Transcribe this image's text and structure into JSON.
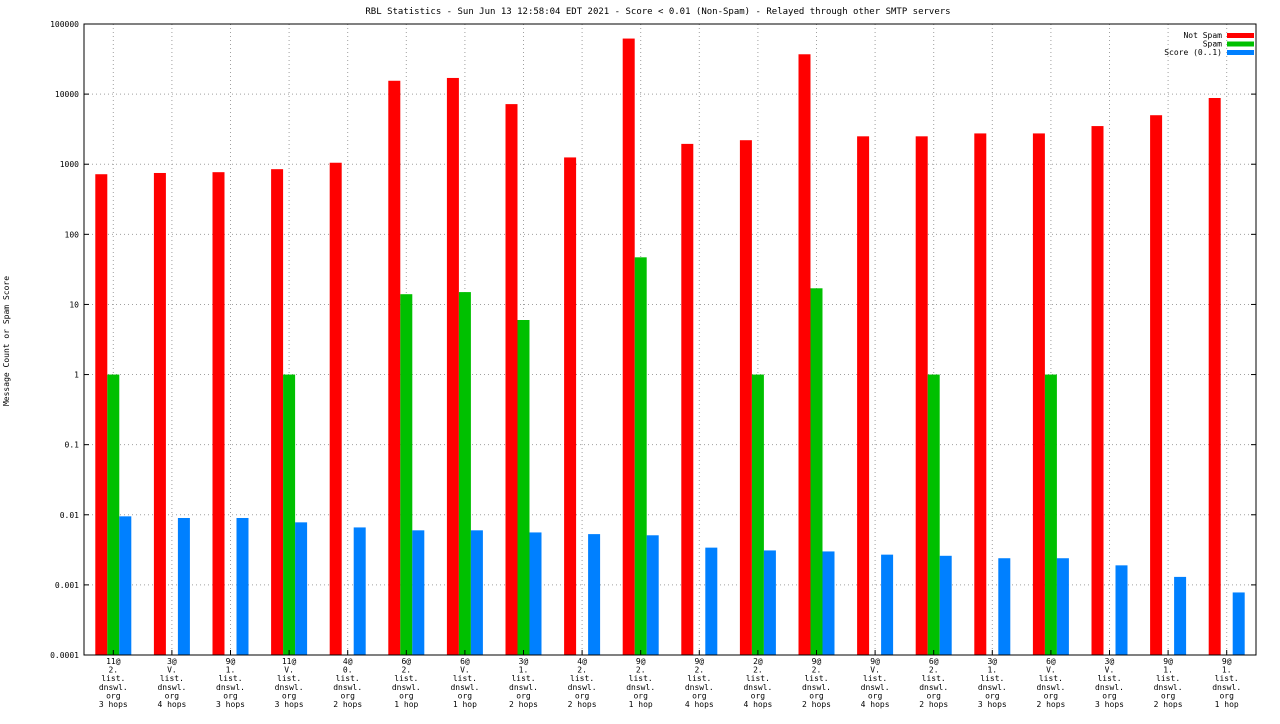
{
  "chart_data": {
    "type": "bar",
    "title": "RBL Statistics - Sun Jun 13 12:58:04 EDT 2021 - Score < 0.01 (Non-Spam) - Relayed through other SMTP servers",
    "ylabel": "Message Count or Spam Score",
    "xlabel": "",
    "yscale": "log",
    "ylim": [
      0.0001,
      100000
    ],
    "y_ticks": [
      {
        "value": 0.0001,
        "label": "0.0001"
      },
      {
        "value": 0.001,
        "label": "0.001"
      },
      {
        "value": 0.01,
        "label": "0.01"
      },
      {
        "value": 0.1,
        "label": "0.1"
      },
      {
        "value": 1,
        "label": "1"
      },
      {
        "value": 10,
        "label": "10"
      },
      {
        "value": 100,
        "label": "100"
      },
      {
        "value": 1000,
        "label": "1000"
      },
      {
        "value": 10000,
        "label": "10000"
      },
      {
        "value": 100000,
        "label": "100000"
      }
    ],
    "grid": true,
    "legend_position": "top-right",
    "categories": [
      [
        "11@",
        "2.",
        "list.",
        "dnswl.",
        "org",
        "3 hops"
      ],
      [
        "3@",
        "V.",
        "list.",
        "dnswl.",
        "org",
        "4 hops"
      ],
      [
        "9@",
        "1.",
        "list.",
        "dnswl.",
        "org",
        "3 hops"
      ],
      [
        "11@",
        "V.",
        "list.",
        "dnswl.",
        "org",
        "3 hops"
      ],
      [
        "4@",
        "0.",
        "list.",
        "dnswl.",
        "org",
        "2 hops"
      ],
      [
        "6@",
        "2.",
        "list.",
        "dnswl.",
        "org",
        "1 hop"
      ],
      [
        "6@",
        "V.",
        "list.",
        "dnswl.",
        "org",
        "1 hop"
      ],
      [
        "3@",
        "1.",
        "list.",
        "dnswl.",
        "org",
        "2 hops"
      ],
      [
        "4@",
        "2.",
        "list.",
        "dnswl.",
        "org",
        "2 hops"
      ],
      [
        "9@",
        "2.",
        "list.",
        "dnswl.",
        "org",
        "1 hop"
      ],
      [
        "9@",
        "2.",
        "list.",
        "dnswl.",
        "org",
        "4 hops"
      ],
      [
        "2@",
        "2.",
        "list.",
        "dnswl.",
        "org",
        "4 hops"
      ],
      [
        "9@",
        "2.",
        "list.",
        "dnswl.",
        "org",
        "2 hops"
      ],
      [
        "9@",
        "V.",
        "list.",
        "dnswl.",
        "org",
        "4 hops"
      ],
      [
        "6@",
        "2.",
        "list.",
        "dnswl.",
        "org",
        "2 hops"
      ],
      [
        "3@",
        "1.",
        "list.",
        "dnswl.",
        "org",
        "3 hops"
      ],
      [
        "6@",
        "V.",
        "list.",
        "dnswl.",
        "org",
        "2 hops"
      ],
      [
        "3@",
        "V.",
        "list.",
        "dnswl.",
        "org",
        "3 hops"
      ],
      [
        "9@",
        "1.",
        "list.",
        "dnswl.",
        "org",
        "2 hops"
      ],
      [
        "9@",
        "1.",
        "list.",
        "dnswl.",
        "org",
        "1 hop"
      ]
    ],
    "series": [
      {
        "name": "Not Spam",
        "color": "#ff0000",
        "values": [
          720,
          750,
          770,
          850,
          1050,
          15500,
          17000,
          7200,
          1250,
          62000,
          1950,
          2200,
          37000,
          2500,
          2500,
          2750,
          2750,
          3500,
          5000,
          8800
        ]
      },
      {
        "name": "Spam",
        "color": "#00c000",
        "values": [
          1,
          0,
          0,
          1,
          0,
          14,
          15,
          6,
          0,
          47,
          0,
          1,
          17,
          0,
          1,
          0,
          1,
          0,
          0,
          0
        ]
      },
      {
        "name": "Score (0..1)",
        "color": "#0080ff",
        "values": [
          0.0095,
          0.009,
          0.009,
          0.0078,
          0.0066,
          0.006,
          0.006,
          0.0056,
          0.0053,
          0.0051,
          0.0034,
          0.0031,
          0.003,
          0.0027,
          0.0026,
          0.0024,
          0.0024,
          0.0019,
          0.0013,
          0.00078
        ]
      }
    ]
  }
}
